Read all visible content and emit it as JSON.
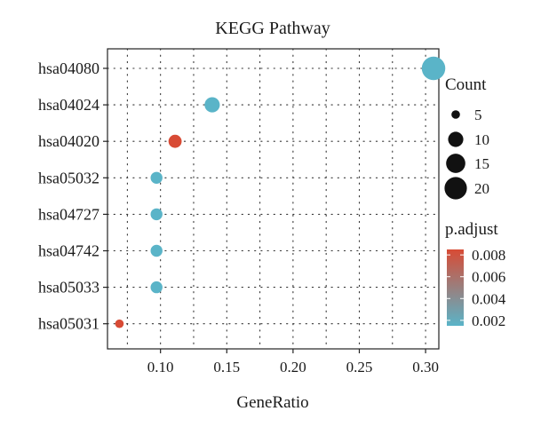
{
  "chart_data": {
    "type": "scatter",
    "title": "KEGG Pathway",
    "xlabel": "GeneRatio",
    "ylabel": "",
    "xlim": [
      0.06,
      0.31
    ],
    "x_ticks": [
      "0.10",
      "0.15",
      "0.20",
      "0.25",
      "0.30"
    ],
    "x_tick_values": [
      0.1,
      0.15,
      0.2,
      0.25,
      0.3
    ],
    "categories": [
      "hsa04080",
      "hsa04024",
      "hsa04020",
      "hsa05032",
      "hsa04727",
      "hsa04742",
      "hsa05033",
      "hsa05031"
    ],
    "points": [
      {
        "term": "hsa04080",
        "gene_ratio": 0.306,
        "count": 22,
        "p_adjust": 0.0015
      },
      {
        "term": "hsa04024",
        "gene_ratio": 0.139,
        "count": 10,
        "p_adjust": 0.0015
      },
      {
        "term": "hsa04020",
        "gene_ratio": 0.111,
        "count": 8,
        "p_adjust": 0.0085
      },
      {
        "term": "hsa05032",
        "gene_ratio": 0.097,
        "count": 7,
        "p_adjust": 0.0015
      },
      {
        "term": "hsa04727",
        "gene_ratio": 0.097,
        "count": 7,
        "p_adjust": 0.0015
      },
      {
        "term": "hsa04742",
        "gene_ratio": 0.097,
        "count": 7,
        "p_adjust": 0.0015
      },
      {
        "term": "hsa05033",
        "gene_ratio": 0.097,
        "count": 7,
        "p_adjust": 0.0015
      },
      {
        "term": "hsa05031",
        "gene_ratio": 0.069,
        "count": 5,
        "p_adjust": 0.0085
      }
    ],
    "size_legend": {
      "title": "Count",
      "values": [
        5,
        10,
        15,
        20
      ],
      "labels": [
        "5",
        "10",
        "15",
        "20"
      ]
    },
    "color_legend": {
      "title": "p.adjust",
      "range": [
        0.0015,
        0.0085
      ],
      "ticks": [
        0.008,
        0.006,
        0.004,
        0.002
      ],
      "tick_labels": [
        "0.008",
        "0.006",
        "0.004",
        "0.002"
      ],
      "low_color": "#5ab4c8",
      "high_color": "#d84b35"
    },
    "grid": true,
    "grid_style": "dotted",
    "legend_position": "right"
  }
}
